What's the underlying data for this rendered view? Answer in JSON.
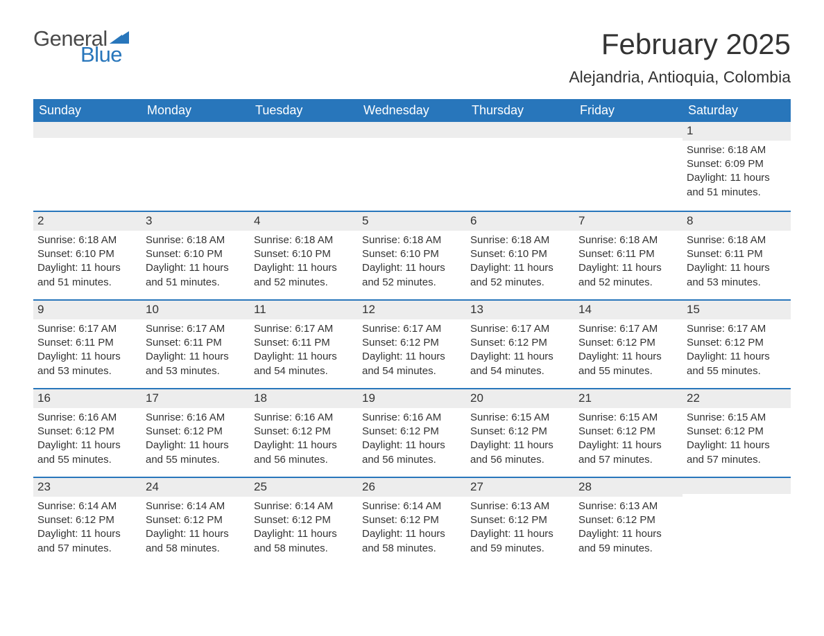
{
  "logo": {
    "word1": "General",
    "word2": "Blue",
    "text_color": "#4a4a4a",
    "accent_color": "#2876bb"
  },
  "title": "February 2025",
  "location": "Alejandria, Antioquia, Colombia",
  "colors": {
    "header_bg": "#2876bb",
    "header_text": "#ffffff",
    "band_bg": "#ededed",
    "body_text": "#333333",
    "row_divider": "#2876bb",
    "page_bg": "#ffffff"
  },
  "typography": {
    "title_fontsize": 42,
    "location_fontsize": 23,
    "dayhead_fontsize": 18,
    "daynum_fontsize": 17,
    "body_fontsize": 15,
    "logo_fontsize": 31
  },
  "day_headers": [
    "Sunday",
    "Monday",
    "Tuesday",
    "Wednesday",
    "Thursday",
    "Friday",
    "Saturday"
  ],
  "weeks": [
    [
      {
        "day": null
      },
      {
        "day": null
      },
      {
        "day": null
      },
      {
        "day": null
      },
      {
        "day": null
      },
      {
        "day": null
      },
      {
        "day": "1",
        "sunrise": "Sunrise: 6:18 AM",
        "sunset": "Sunset: 6:09 PM",
        "daylight1": "Daylight: 11 hours",
        "daylight2": "and 51 minutes."
      }
    ],
    [
      {
        "day": "2",
        "sunrise": "Sunrise: 6:18 AM",
        "sunset": "Sunset: 6:10 PM",
        "daylight1": "Daylight: 11 hours",
        "daylight2": "and 51 minutes."
      },
      {
        "day": "3",
        "sunrise": "Sunrise: 6:18 AM",
        "sunset": "Sunset: 6:10 PM",
        "daylight1": "Daylight: 11 hours",
        "daylight2": "and 51 minutes."
      },
      {
        "day": "4",
        "sunrise": "Sunrise: 6:18 AM",
        "sunset": "Sunset: 6:10 PM",
        "daylight1": "Daylight: 11 hours",
        "daylight2": "and 52 minutes."
      },
      {
        "day": "5",
        "sunrise": "Sunrise: 6:18 AM",
        "sunset": "Sunset: 6:10 PM",
        "daylight1": "Daylight: 11 hours",
        "daylight2": "and 52 minutes."
      },
      {
        "day": "6",
        "sunrise": "Sunrise: 6:18 AM",
        "sunset": "Sunset: 6:10 PM",
        "daylight1": "Daylight: 11 hours",
        "daylight2": "and 52 minutes."
      },
      {
        "day": "7",
        "sunrise": "Sunrise: 6:18 AM",
        "sunset": "Sunset: 6:11 PM",
        "daylight1": "Daylight: 11 hours",
        "daylight2": "and 52 minutes."
      },
      {
        "day": "8",
        "sunrise": "Sunrise: 6:18 AM",
        "sunset": "Sunset: 6:11 PM",
        "daylight1": "Daylight: 11 hours",
        "daylight2": "and 53 minutes."
      }
    ],
    [
      {
        "day": "9",
        "sunrise": "Sunrise: 6:17 AM",
        "sunset": "Sunset: 6:11 PM",
        "daylight1": "Daylight: 11 hours",
        "daylight2": "and 53 minutes."
      },
      {
        "day": "10",
        "sunrise": "Sunrise: 6:17 AM",
        "sunset": "Sunset: 6:11 PM",
        "daylight1": "Daylight: 11 hours",
        "daylight2": "and 53 minutes."
      },
      {
        "day": "11",
        "sunrise": "Sunrise: 6:17 AM",
        "sunset": "Sunset: 6:11 PM",
        "daylight1": "Daylight: 11 hours",
        "daylight2": "and 54 minutes."
      },
      {
        "day": "12",
        "sunrise": "Sunrise: 6:17 AM",
        "sunset": "Sunset: 6:12 PM",
        "daylight1": "Daylight: 11 hours",
        "daylight2": "and 54 minutes."
      },
      {
        "day": "13",
        "sunrise": "Sunrise: 6:17 AM",
        "sunset": "Sunset: 6:12 PM",
        "daylight1": "Daylight: 11 hours",
        "daylight2": "and 54 minutes."
      },
      {
        "day": "14",
        "sunrise": "Sunrise: 6:17 AM",
        "sunset": "Sunset: 6:12 PM",
        "daylight1": "Daylight: 11 hours",
        "daylight2": "and 55 minutes."
      },
      {
        "day": "15",
        "sunrise": "Sunrise: 6:17 AM",
        "sunset": "Sunset: 6:12 PM",
        "daylight1": "Daylight: 11 hours",
        "daylight2": "and 55 minutes."
      }
    ],
    [
      {
        "day": "16",
        "sunrise": "Sunrise: 6:16 AM",
        "sunset": "Sunset: 6:12 PM",
        "daylight1": "Daylight: 11 hours",
        "daylight2": "and 55 minutes."
      },
      {
        "day": "17",
        "sunrise": "Sunrise: 6:16 AM",
        "sunset": "Sunset: 6:12 PM",
        "daylight1": "Daylight: 11 hours",
        "daylight2": "and 55 minutes."
      },
      {
        "day": "18",
        "sunrise": "Sunrise: 6:16 AM",
        "sunset": "Sunset: 6:12 PM",
        "daylight1": "Daylight: 11 hours",
        "daylight2": "and 56 minutes."
      },
      {
        "day": "19",
        "sunrise": "Sunrise: 6:16 AM",
        "sunset": "Sunset: 6:12 PM",
        "daylight1": "Daylight: 11 hours",
        "daylight2": "and 56 minutes."
      },
      {
        "day": "20",
        "sunrise": "Sunrise: 6:15 AM",
        "sunset": "Sunset: 6:12 PM",
        "daylight1": "Daylight: 11 hours",
        "daylight2": "and 56 minutes."
      },
      {
        "day": "21",
        "sunrise": "Sunrise: 6:15 AM",
        "sunset": "Sunset: 6:12 PM",
        "daylight1": "Daylight: 11 hours",
        "daylight2": "and 57 minutes."
      },
      {
        "day": "22",
        "sunrise": "Sunrise: 6:15 AM",
        "sunset": "Sunset: 6:12 PM",
        "daylight1": "Daylight: 11 hours",
        "daylight2": "and 57 minutes."
      }
    ],
    [
      {
        "day": "23",
        "sunrise": "Sunrise: 6:14 AM",
        "sunset": "Sunset: 6:12 PM",
        "daylight1": "Daylight: 11 hours",
        "daylight2": "and 57 minutes."
      },
      {
        "day": "24",
        "sunrise": "Sunrise: 6:14 AM",
        "sunset": "Sunset: 6:12 PM",
        "daylight1": "Daylight: 11 hours",
        "daylight2": "and 58 minutes."
      },
      {
        "day": "25",
        "sunrise": "Sunrise: 6:14 AM",
        "sunset": "Sunset: 6:12 PM",
        "daylight1": "Daylight: 11 hours",
        "daylight2": "and 58 minutes."
      },
      {
        "day": "26",
        "sunrise": "Sunrise: 6:14 AM",
        "sunset": "Sunset: 6:12 PM",
        "daylight1": "Daylight: 11 hours",
        "daylight2": "and 58 minutes."
      },
      {
        "day": "27",
        "sunrise": "Sunrise: 6:13 AM",
        "sunset": "Sunset: 6:12 PM",
        "daylight1": "Daylight: 11 hours",
        "daylight2": "and 59 minutes."
      },
      {
        "day": "28",
        "sunrise": "Sunrise: 6:13 AM",
        "sunset": "Sunset: 6:12 PM",
        "daylight1": "Daylight: 11 hours",
        "daylight2": "and 59 minutes."
      },
      {
        "day": null
      }
    ]
  ]
}
